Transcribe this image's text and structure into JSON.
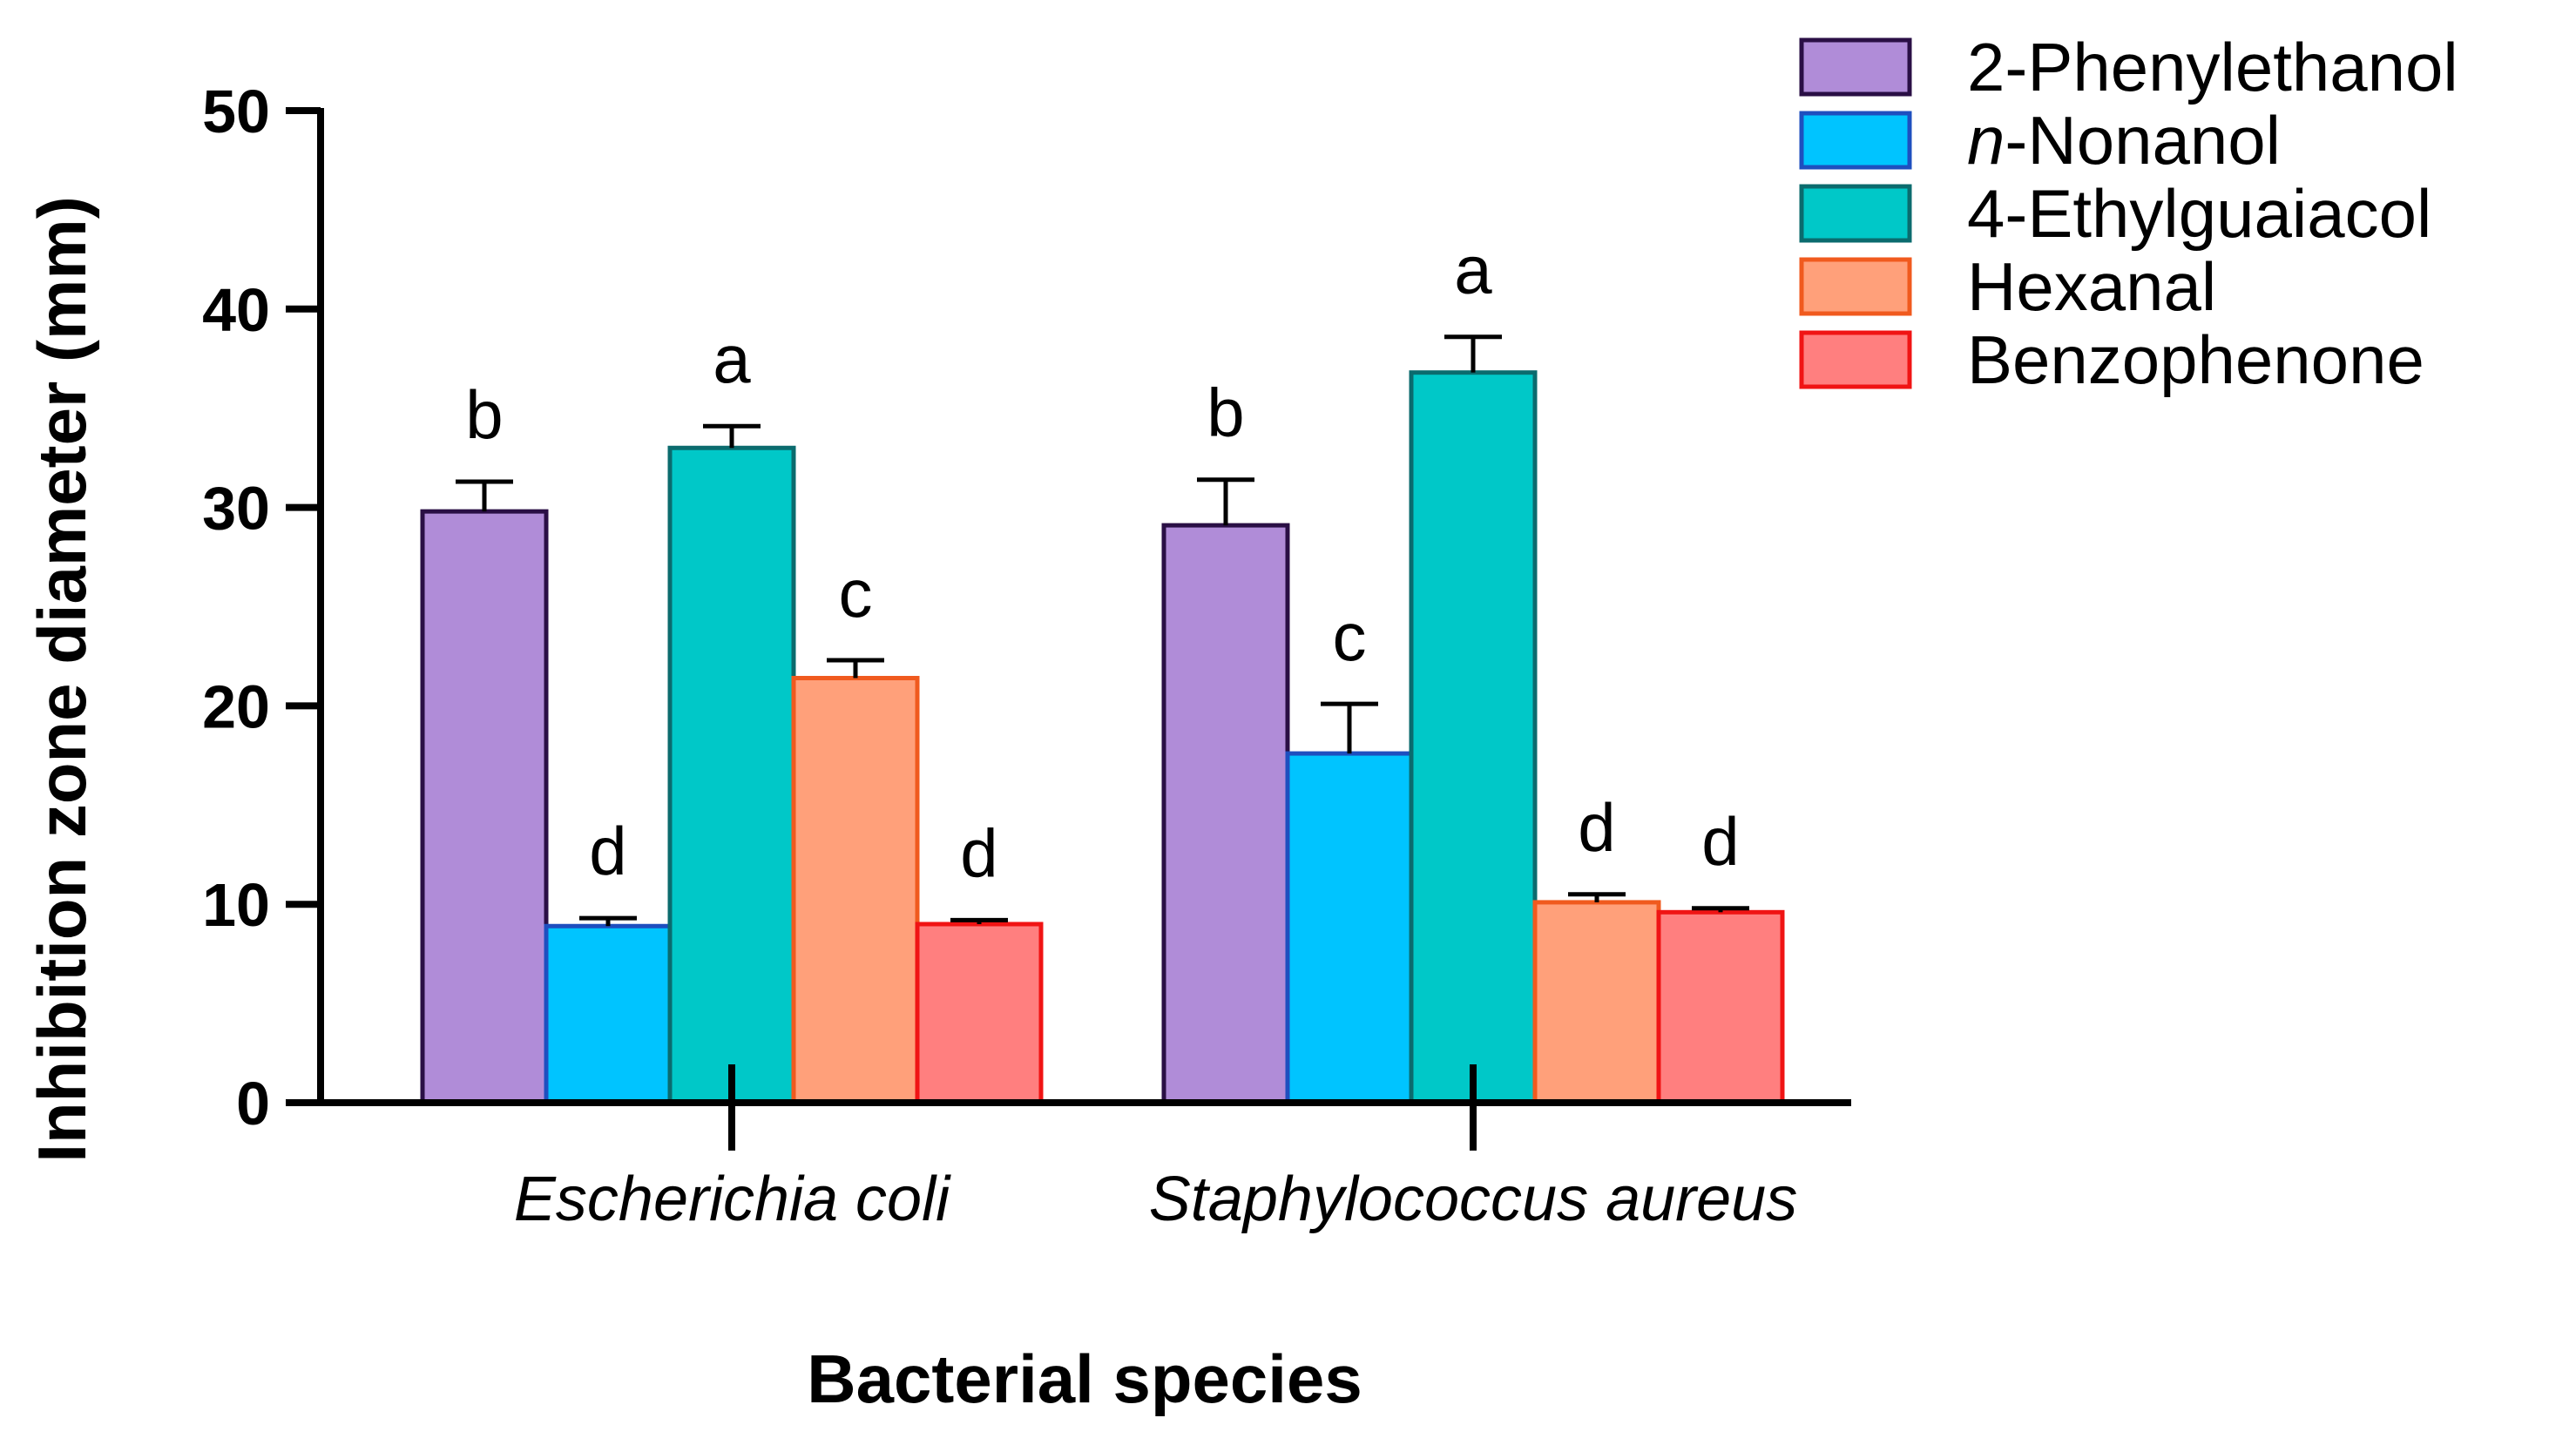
{
  "chart_data": {
    "type": "bar",
    "title": "",
    "xlabel": "Bacterial species",
    "ylabel": "Inhibition zone diameter (mm)",
    "ylim": [
      0,
      50
    ],
    "yticks": [
      0,
      10,
      20,
      30,
      40,
      50
    ],
    "yticks_labels": [
      "0",
      "10",
      "20",
      "30",
      "40",
      "50"
    ],
    "categories": [
      "Escherichia coli",
      "Staphylococcus aureus"
    ],
    "legend_position": "top-right",
    "series": [
      {
        "name": "2-Phenylethanol",
        "legend_prefix": "",
        "legend_suffix": "2-Phenylethanol",
        "fill": "#B08CD8",
        "stroke": "#2A0F45",
        "values": [
          29.8,
          29.1
        ],
        "errors": [
          1.5,
          2.3
        ],
        "letters": [
          "b",
          "b"
        ]
      },
      {
        "name": "n-Nonanol",
        "legend_prefix": "n",
        "legend_suffix": "-Nonanol",
        "fill": "#00C4FF",
        "stroke": "#1E4FBF",
        "values": [
          8.9,
          17.6
        ],
        "errors": [
          0.4,
          2.5
        ],
        "letters": [
          "d",
          "c"
        ]
      },
      {
        "name": "4-Ethylguaiacol",
        "legend_prefix": "",
        "legend_suffix": "4-Ethylguaiacol",
        "fill": "#00C8C8",
        "stroke": "#0B6B6E",
        "values": [
          33.0,
          36.8
        ],
        "errors": [
          1.1,
          1.8
        ],
        "letters": [
          "a",
          "a"
        ]
      },
      {
        "name": "Hexanal",
        "legend_prefix": "",
        "legend_suffix": "Hexanal",
        "fill": "#FFA07A",
        "stroke": "#F05A1E",
        "values": [
          21.4,
          10.1
        ],
        "errors": [
          0.9,
          0.4
        ],
        "letters": [
          "c",
          "d"
        ]
      },
      {
        "name": "Benzophenone",
        "legend_prefix": "",
        "legend_suffix": "Benzophenone",
        "fill": "#FF7F7F",
        "stroke": "#F01414",
        "values": [
          9.0,
          9.6
        ],
        "errors": [
          0.2,
          0.2
        ],
        "letters": [
          "d",
          "d"
        ]
      }
    ]
  }
}
